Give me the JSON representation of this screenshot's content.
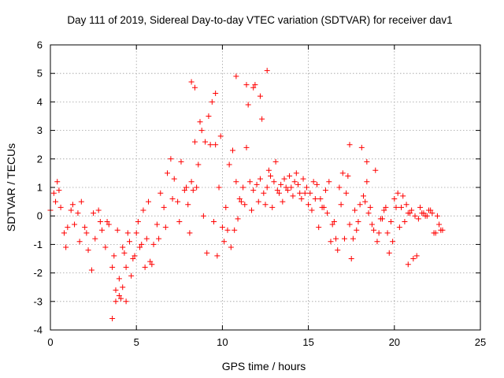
{
  "chart_data": {
    "type": "scatter",
    "title": "Day 111 of 2019, Sidereal Day-to-day VTEC variation (SDTVAR) for receiver dav1",
    "xlabel": "GPS time / hours",
    "ylabel": "SDTVAR / TECUs",
    "xlim": [
      0,
      25
    ],
    "ylim": [
      -4,
      6
    ],
    "xticks": [
      0,
      5,
      10,
      15,
      20,
      25
    ],
    "yticks": [
      -4,
      -3,
      -2,
      -1,
      0,
      1,
      2,
      3,
      4,
      5,
      6
    ],
    "xtick_labels": [
      "0",
      "5",
      "10",
      "15",
      "20",
      "25"
    ],
    "ytick_labels": [
      "-4",
      "-3",
      "-2",
      "-1",
      "0",
      "1",
      "2",
      "3",
      "4",
      "5",
      "6"
    ],
    "grid": true,
    "marker": "+",
    "color": "#ff0000",
    "series": [
      {
        "name": "dav1",
        "x": [
          0.0,
          0.2,
          0.4,
          0.6,
          0.8,
          1.0,
          1.2,
          1.4,
          1.6,
          1.8,
          2.0,
          2.2,
          2.4,
          2.6,
          2.8,
          3.0,
          3.2,
          3.4,
          3.6,
          3.8,
          4.0,
          4.2,
          4.4,
          4.6,
          4.8,
          5.0,
          5.2,
          5.4,
          5.6,
          5.8,
          6.0,
          6.2,
          6.4,
          6.6,
          6.8,
          7.0,
          7.2,
          7.4,
          7.6,
          7.8,
          8.0,
          8.2,
          8.4,
          8.6,
          8.8,
          9.0,
          9.2,
          9.4,
          9.6,
          9.8,
          10.0,
          10.2,
          10.4,
          10.6,
          10.8,
          11.0,
          11.2,
          11.4,
          11.6,
          11.8,
          12.0,
          12.2,
          12.4,
          12.6,
          12.8,
          13.0,
          13.2,
          13.4,
          13.6,
          13.8,
          14.0,
          14.2,
          14.4,
          14.6,
          14.8,
          15.0,
          15.2,
          15.4,
          15.6,
          15.8,
          16.0,
          16.2,
          16.4,
          16.6,
          16.8,
          17.0,
          17.2,
          17.4,
          17.6,
          17.8,
          18.0,
          18.2,
          18.4,
          18.6,
          18.8,
          19.0,
          19.2,
          19.4,
          19.6,
          19.8,
          20.0,
          20.2,
          20.4,
          20.6,
          20.8,
          21.0,
          21.2,
          21.4,
          21.6,
          21.8,
          22.0,
          22.2,
          22.4,
          22.6,
          22.8,
          0.3,
          0.5,
          0.9,
          1.3,
          1.7,
          2.1,
          2.5,
          2.9,
          3.3,
          3.7,
          3.9,
          4.1,
          4.3,
          4.5,
          4.7,
          4.9,
          5.1,
          5.3,
          5.5,
          5.7,
          5.9,
          6.3,
          6.7,
          7.1,
          7.5,
          7.9,
          8.1,
          8.3,
          8.5,
          8.7,
          8.9,
          9.1,
          9.3,
          9.5,
          9.7,
          9.9,
          10.1,
          10.3,
          10.5,
          10.7,
          10.9,
          11.1,
          11.3,
          11.5,
          11.7,
          11.9,
          12.1,
          12.3,
          12.5,
          12.7,
          12.9,
          13.1,
          13.3,
          13.5,
          13.7,
          13.9,
          14.1,
          14.3,
          14.5,
          14.7,
          14.9,
          15.1,
          15.3,
          15.5,
          15.7,
          15.9,
          16.1,
          16.3,
          16.5,
          16.7,
          16.9,
          17.1,
          17.3,
          17.5,
          17.7,
          17.9,
          18.1,
          18.3,
          18.5,
          18.7,
          18.9,
          19.1,
          19.3,
          19.5,
          19.7,
          19.9,
          20.1,
          20.3,
          20.5,
          20.7,
          20.9,
          21.1,
          21.3,
          21.5,
          21.7,
          21.9,
          22.1,
          22.3,
          22.5,
          22.7,
          3.6,
          3.8,
          4.0,
          4.2,
          4.4,
          8.2,
          8.4,
          9.6,
          10.8,
          11.4,
          11.8,
          12.2,
          12.6,
          17.4,
          18.4,
          20.8
        ],
        "y": [
          0.2,
          0.8,
          1.2,
          0.3,
          -0.6,
          -0.4,
          0.2,
          -0.3,
          0.1,
          0.5,
          -0.4,
          -1.2,
          -1.9,
          -0.8,
          0.2,
          -0.5,
          -1.1,
          -0.3,
          -1.8,
          -2.6,
          -2.2,
          -1.1,
          -1.8,
          -0.9,
          -1.5,
          -0.6,
          -1.1,
          0.2,
          -0.8,
          -1.6,
          -1.0,
          -0.3,
          0.8,
          0.3,
          1.5,
          2.0,
          1.3,
          0.5,
          1.9,
          0.9,
          0.4,
          1.2,
          2.6,
          1.8,
          3.0,
          2.6,
          3.5,
          4.0,
          2.5,
          1.0,
          -0.4,
          0.3,
          1.8,
          2.3,
          1.2,
          0.6,
          1.0,
          2.4,
          1.2,
          0.9,
          1.1,
          1.3,
          0.8,
          1.0,
          1.4,
          1.2,
          0.9,
          1.1,
          1.3,
          0.9,
          1.0,
          1.2,
          1.1,
          0.6,
          0.8,
          0.4,
          0.2,
          0.6,
          -0.4,
          0.3,
          0.9,
          1.2,
          -0.3,
          -0.8,
          1.0,
          1.5,
          0.8,
          -0.3,
          -0.8,
          -0.5,
          0.4,
          0.7,
          1.2,
          0.3,
          -0.5,
          -0.9,
          -0.1,
          0.2,
          -0.6,
          -0.2,
          0.6,
          0.8,
          0.3,
          -0.2,
          0.1,
          0.2,
          0.0,
          -0.1,
          0.1,
          0.0,
          0.2,
          0.1,
          -0.6,
          -0.3,
          -0.5,
          0.5,
          0.9,
          -1.1,
          0.4,
          -0.9,
          -0.6,
          0.1,
          -0.2,
          -0.2,
          -1.4,
          -0.5,
          -2.9,
          -1.3,
          -0.6,
          -2.1,
          -1.4,
          -0.2,
          -1.0,
          -1.8,
          0.5,
          -1.7,
          -0.8,
          -0.4,
          0.6,
          -0.2,
          1.0,
          -0.6,
          0.9,
          1.0,
          3.3,
          0.0,
          -1.3,
          2.5,
          -0.2,
          -1.4,
          2.8,
          -0.9,
          -0.5,
          -1.1,
          -0.5,
          -0.1,
          0.5,
          0.4,
          3.9,
          0.2,
          4.6,
          0.5,
          3.4,
          0.4,
          1.6,
          0.3,
          1.9,
          0.8,
          0.5,
          1.0,
          1.4,
          0.7,
          1.5,
          0.8,
          1.3,
          1.0,
          0.8,
          1.2,
          1.1,
          0.6,
          0.3,
          0.1,
          -0.9,
          -0.2,
          -1.2,
          0.4,
          -0.8,
          1.4,
          -1.5,
          0.2,
          -0.2,
          2.4,
          0.5,
          0.1,
          -0.3,
          1.6,
          -0.6,
          -0.1,
          0.3,
          -1.3,
          -0.9,
          0.3,
          -0.4,
          0.7,
          0.4,
          0.1,
          -1.5,
          -1.4,
          0.3,
          0.1,
          0.0,
          0.2,
          -0.6,
          0.0,
          -0.5,
          -3.6,
          -3.0,
          -2.8,
          -2.5,
          -3.0,
          4.7,
          4.5,
          4.3,
          4.9,
          4.6,
          4.5,
          4.2,
          5.1,
          2.5,
          1.9,
          -1.7
        ]
      }
    ]
  }
}
